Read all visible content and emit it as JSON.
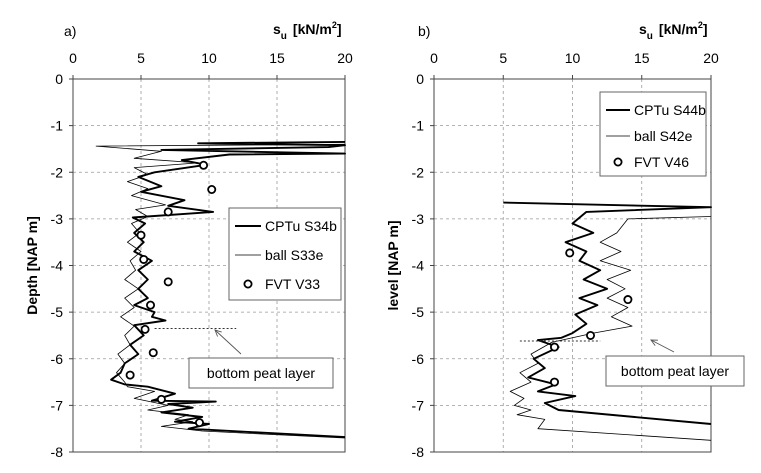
{
  "chart_data": [
    {
      "panel_label": "a)",
      "type": "line",
      "x_axis_label_main": "s",
      "x_axis_label_sub": "u",
      "x_axis_unit": "[kN/m",
      "x_axis_unit_sup": "2",
      "x_axis_unit_close": "]",
      "y_axis_label": "Depth [NAP m]",
      "xlim": [
        0,
        20
      ],
      "ylim": [
        -8,
        0
      ],
      "x_ticks": [
        0,
        5,
        10,
        15,
        20
      ],
      "y_ticks": [
        0,
        -1,
        -2,
        -3,
        -4,
        -5,
        -6,
        -7,
        -8
      ],
      "grid": true,
      "legend_placement": "right",
      "annotation": "bottom peat layer",
      "peat_layer_level": -5.35,
      "series": [
        {
          "name": "CPTu S34b",
          "style": "thick",
          "points": [
            [
              20,
              -1.35
            ],
            [
              9.2,
              -1.38
            ],
            [
              20,
              -1.42
            ],
            [
              18.8,
              -1.46
            ],
            [
              6.5,
              -1.52
            ],
            [
              20,
              -1.6
            ],
            [
              11.5,
              -1.62
            ],
            [
              8,
              -1.74
            ],
            [
              9.8,
              -1.84
            ],
            [
              6,
              -2
            ],
            [
              4.8,
              -2.1
            ],
            [
              6.5,
              -2.3
            ],
            [
              5,
              -2.42
            ],
            [
              8.2,
              -2.6
            ],
            [
              7,
              -2.72
            ],
            [
              10.3,
              -2.85
            ],
            [
              4.4,
              -2.97
            ],
            [
              5.3,
              -3.1
            ],
            [
              4.5,
              -3.3
            ],
            [
              5.2,
              -3.5
            ],
            [
              4.5,
              -3.7
            ],
            [
              5.8,
              -3.9
            ],
            [
              4.8,
              -4.1
            ],
            [
              5.5,
              -4.3
            ],
            [
              4.8,
              -4.5
            ],
            [
              5.5,
              -4.7
            ],
            [
              4.5,
              -4.85
            ],
            [
              6,
              -5
            ],
            [
              5.8,
              -5.1
            ],
            [
              6.8,
              -5.18
            ],
            [
              4.5,
              -5.28
            ],
            [
              5.2,
              -5.5
            ],
            [
              4.2,
              -5.7
            ],
            [
              4.8,
              -5.9
            ],
            [
              3.8,
              -6.1
            ],
            [
              3.5,
              -6.3
            ],
            [
              2.8,
              -6.45
            ],
            [
              3.8,
              -6.55
            ],
            [
              5.5,
              -6.6
            ],
            [
              7.5,
              -6.75
            ],
            [
              5.8,
              -6.9
            ],
            [
              10.5,
              -6.92
            ],
            [
              7,
              -6.97
            ],
            [
              8.8,
              -7.05
            ],
            [
              6.5,
              -7.15
            ],
            [
              9.5,
              -7.25
            ],
            [
              7.5,
              -7.35
            ],
            [
              10,
              -7.4
            ],
            [
              8.5,
              -7.5
            ],
            [
              20,
              -7.68
            ]
          ]
        },
        {
          "name": "ball S33e",
          "style": "thin",
          "points": [
            [
              20,
              -1.4
            ],
            [
              1.7,
              -1.44
            ],
            [
              6.5,
              -1.55
            ],
            [
              4.5,
              -1.7
            ],
            [
              9.2,
              -1.8
            ],
            [
              4.5,
              -1.9
            ],
            [
              5.5,
              -2.05
            ],
            [
              4,
              -2.2
            ],
            [
              5.5,
              -2.35
            ],
            [
              4.3,
              -2.5
            ],
            [
              6.8,
              -2.7
            ],
            [
              4.6,
              -2.8
            ],
            [
              5.5,
              -2.95
            ],
            [
              4.3,
              -3.1
            ],
            [
              4.9,
              -3.3
            ],
            [
              4,
              -3.5
            ],
            [
              5,
              -3.7
            ],
            [
              4.2,
              -3.9
            ],
            [
              4.6,
              -4.1
            ],
            [
              3.8,
              -4.3
            ],
            [
              4.8,
              -4.5
            ],
            [
              3.8,
              -4.7
            ],
            [
              4.5,
              -4.9
            ],
            [
              3.5,
              -5.1
            ],
            [
              4.5,
              -5.3
            ],
            [
              3.8,
              -5.5
            ],
            [
              4.2,
              -5.7
            ],
            [
              3.3,
              -5.9
            ],
            [
              3.8,
              -6.1
            ],
            [
              3.2,
              -6.3
            ],
            [
              3.8,
              -6.5
            ],
            [
              4,
              -6.6
            ],
            [
              6,
              -6.7
            ],
            [
              4.5,
              -6.85
            ],
            [
              7,
              -7
            ],
            [
              5.5,
              -7.1
            ],
            [
              8.5,
              -7.2
            ],
            [
              7.5,
              -7.3
            ],
            [
              8.8,
              -7.35
            ],
            [
              6.5,
              -7.45
            ],
            [
              9.5,
              -7.55
            ],
            [
              20,
              -7.7
            ]
          ]
        },
        {
          "name": "FVT V33",
          "style": "markers",
          "points": [
            [
              9.6,
              -1.85
            ],
            [
              10.2,
              -2.37
            ],
            [
              7.0,
              -2.85
            ],
            [
              5.0,
              -3.35
            ],
            [
              5.2,
              -3.87
            ],
            [
              7.0,
              -4.35
            ],
            [
              5.7,
              -4.85
            ],
            [
              5.3,
              -5.37
            ],
            [
              5.9,
              -5.87
            ],
            [
              4.2,
              -6.35
            ],
            [
              6.5,
              -6.87
            ],
            [
              9.3,
              -7.37
            ]
          ]
        }
      ]
    },
    {
      "panel_label": "b)",
      "type": "line",
      "x_axis_label_main": "s",
      "x_axis_label_sub": "u",
      "x_axis_unit": "[kN/m",
      "x_axis_unit_sup": "2",
      "x_axis_unit_close": "]",
      "y_axis_label": "level [NAP m]",
      "xlim": [
        0,
        20
      ],
      "ylim": [
        -8,
        0
      ],
      "x_ticks": [
        0,
        5,
        10,
        15,
        20
      ],
      "y_ticks": [
        0,
        -1,
        -2,
        -3,
        -4,
        -5,
        -6,
        -7,
        -8
      ],
      "grid": true,
      "legend_placement": "top-right",
      "annotation": "bottom peat layer",
      "peat_layer_level": -5.62,
      "series": [
        {
          "name": "CPTu S44b",
          "style": "thick",
          "points": [
            [
              5,
              -2.65
            ],
            [
              20,
              -2.75
            ],
            [
              11,
              -2.85
            ],
            [
              10,
              -3.1
            ],
            [
              11.5,
              -3.3
            ],
            [
              9.5,
              -3.5
            ],
            [
              11,
              -3.7
            ],
            [
              10.5,
              -3.9
            ],
            [
              12,
              -4.1
            ],
            [
              10.8,
              -4.3
            ],
            [
              12.5,
              -4.5
            ],
            [
              10.5,
              -4.7
            ],
            [
              11.8,
              -4.85
            ],
            [
              10.2,
              -5.05
            ],
            [
              11,
              -5.25
            ],
            [
              10,
              -5.45
            ],
            [
              9.2,
              -5.55
            ],
            [
              7.5,
              -5.6
            ],
            [
              9,
              -5.75
            ],
            [
              7.2,
              -6
            ],
            [
              8,
              -6.2
            ],
            [
              6.8,
              -6.4
            ],
            [
              8.8,
              -6.55
            ],
            [
              7.5,
              -6.7
            ],
            [
              10.2,
              -6.8
            ],
            [
              8,
              -6.95
            ],
            [
              9,
              -7.1
            ],
            [
              20,
              -7.4
            ]
          ]
        },
        {
          "name": "ball S42e",
          "style": "thin",
          "points": [
            [
              20,
              -2.95
            ],
            [
              14,
              -3
            ],
            [
              13.2,
              -3.3
            ],
            [
              12,
              -3.5
            ],
            [
              13.5,
              -3.7
            ],
            [
              12,
              -3.9
            ],
            [
              14.2,
              -4.1
            ],
            [
              12.5,
              -4.3
            ],
            [
              13.8,
              -4.5
            ],
            [
              12.5,
              -4.7
            ],
            [
              14,
              -4.9
            ],
            [
              12.8,
              -5.1
            ],
            [
              14.3,
              -5.3
            ],
            [
              11.5,
              -5.45
            ],
            [
              8.5,
              -5.65
            ],
            [
              7,
              -5.9
            ],
            [
              7.5,
              -6.1
            ],
            [
              6.2,
              -6.3
            ],
            [
              7,
              -6.5
            ],
            [
              5.5,
              -6.7
            ],
            [
              6.5,
              -6.85
            ],
            [
              5.8,
              -7
            ],
            [
              7,
              -7.1
            ],
            [
              6,
              -7.2
            ],
            [
              8,
              -7.3
            ],
            [
              7.5,
              -7.5
            ],
            [
              20,
              -7.75
            ]
          ]
        },
        {
          "name": "FVT V46",
          "style": "markers",
          "points": [
            [
              9.8,
              -3.73
            ],
            [
              14.0,
              -4.73
            ],
            [
              11.3,
              -5.5
            ],
            [
              8.7,
              -5.75
            ],
            [
              8.7,
              -6.5
            ]
          ]
        }
      ]
    }
  ]
}
